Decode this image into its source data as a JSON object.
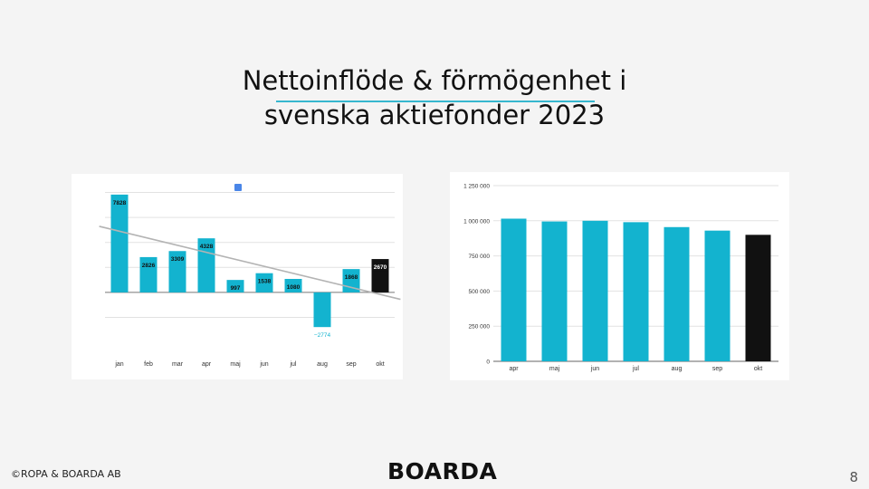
{
  "slide": {
    "title_line1": "Nettoinflöde & förmögenhet i",
    "title_line2": "svenska aktiefonder 2023",
    "footer_copyright": "©ROPA & BOARDA AB",
    "logo_text": "BOARDA",
    "page_number": "8"
  },
  "chart_data": [
    {
      "type": "bar",
      "categories": [
        "jan",
        "feb",
        "mar",
        "apr",
        "maj",
        "jun",
        "jul",
        "aug",
        "sep",
        "okt"
      ],
      "values": [
        7828,
        2826,
        3309,
        4328,
        997,
        1538,
        1080,
        -2774,
        1868,
        2670
      ],
      "data_labels": [
        "7828",
        "2826",
        "3309",
        "4328",
        "997",
        "1538",
        "1080",
        "−2774",
        "1868",
        "2670"
      ],
      "bar_colors": [
        "#13b3cf",
        "#13b3cf",
        "#13b3cf",
        "#13b3cf",
        "#13b3cf",
        "#13b3cf",
        "#13b3cf",
        "#13b3cf",
        "#13b3cf",
        "#111111"
      ],
      "trendline": {
        "color": "#b3b3b3"
      },
      "legend_swatch_color": "#4a86e8",
      "ylim": [
        -4500,
        8400
      ],
      "gridlines": [
        -2000,
        0,
        2000,
        4000,
        6000,
        8000
      ],
      "grid": true,
      "legend": "top-center",
      "title": "",
      "xlabel": "",
      "ylabel": ""
    },
    {
      "type": "bar",
      "categories": [
        "apr",
        "maj",
        "jun",
        "jul",
        "aug",
        "sep",
        "okt"
      ],
      "values": [
        1015000,
        995000,
        1000000,
        990000,
        955000,
        930000,
        900000
      ],
      "bar_colors": [
        "#13b3cf",
        "#13b3cf",
        "#13b3cf",
        "#13b3cf",
        "#13b3cf",
        "#13b3cf",
        "#111111"
      ],
      "yticks": [
        0,
        250000,
        500000,
        750000,
        1000000,
        1250000
      ],
      "ytick_labels": [
        "0",
        "250 000",
        "500 000",
        "750 000",
        "1 000 000",
        "1 250 000"
      ],
      "ylim": [
        0,
        1250000
      ],
      "grid": true,
      "title": "",
      "xlabel": "",
      "ylabel": ""
    }
  ]
}
